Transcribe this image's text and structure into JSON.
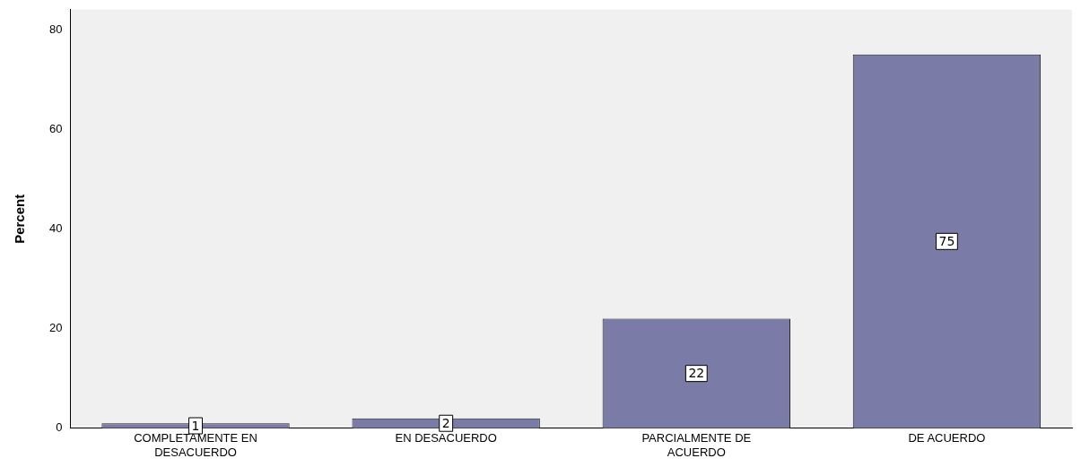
{
  "chart_data": {
    "type": "bar",
    "ylabel": "Percent",
    "categories": [
      "COMPLETAMENTE EN DESACUERDO",
      "EN DESACUERDO",
      "PARCIALMENTE DE ACUERDO",
      "DE ACUERDO"
    ],
    "values": [
      1,
      2,
      22,
      75
    ],
    "color": "#7b7ba8",
    "ylim": [
      0,
      84
    ],
    "yticks": [
      0,
      20,
      40,
      60,
      80
    ],
    "grid": false,
    "legend": false,
    "data_labels": true
  }
}
